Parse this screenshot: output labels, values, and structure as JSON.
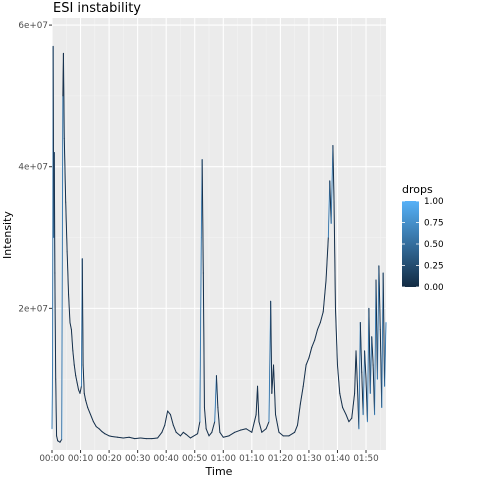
{
  "chart_data": {
    "type": "line",
    "title": "ESI instability",
    "xlabel": "Time",
    "ylabel": "Intensity",
    "x_tick_labels": [
      "00:00",
      "00:10",
      "00:20",
      "00:30",
      "00:40",
      "00:50",
      "01:00",
      "01:10",
      "01:20",
      "01:30",
      "01:40",
      "01:50"
    ],
    "x_tick_minutes": [
      0,
      10,
      20,
      30,
      40,
      50,
      60,
      70,
      80,
      90,
      100,
      110
    ],
    "xlim_minutes": [
      0,
      117
    ],
    "y_tick_labels": [
      "2e+07",
      "4e+07",
      "6e+07"
    ],
    "y_tick_values": [
      20000000,
      40000000,
      60000000
    ],
    "ylim": [
      0,
      61000000
    ],
    "grid": true,
    "legend": {
      "title": "drops",
      "position": "right",
      "scale": "continuous",
      "labels": [
        "1.00",
        "0.75",
        "0.50",
        "0.25",
        "0.00"
      ],
      "values": [
        1.0,
        0.75,
        0.5,
        0.25,
        0.0
      ],
      "low_color": "#132B43",
      "high_color": "#56B1F7"
    },
    "series": [
      {
        "points": [
          [
            0.0,
            3.0
          ],
          [
            0.2,
            12.0
          ],
          [
            0.4,
            57.0
          ],
          [
            0.6,
            30.0
          ],
          [
            0.8,
            42.0
          ],
          [
            1.0,
            25.0
          ],
          [
            1.3,
            10.0
          ],
          [
            1.6,
            2.0
          ],
          [
            2.0,
            1.3
          ],
          [
            2.8,
            1.1
          ],
          [
            3.4,
            1.5
          ],
          [
            3.8,
            50.0
          ],
          [
            4.0,
            56.0
          ],
          [
            4.3,
            44.0
          ],
          [
            4.8,
            35.0
          ],
          [
            5.3,
            28.0
          ],
          [
            5.8,
            22.0
          ],
          [
            6.3,
            18.0
          ],
          [
            6.8,
            17.0
          ],
          [
            7.3,
            14.0
          ],
          [
            7.8,
            12.0
          ],
          [
            8.3,
            10.5
          ],
          [
            8.8,
            9.5
          ],
          [
            9.3,
            8.5
          ],
          [
            9.8,
            8.0
          ],
          [
            10.3,
            9.0
          ],
          [
            10.6,
            27.0
          ],
          [
            10.9,
            12.0
          ],
          [
            11.3,
            8.0
          ],
          [
            11.8,
            7.0
          ],
          [
            12.5,
            6.0
          ],
          [
            13.5,
            5.0
          ],
          [
            14.5,
            4.0
          ],
          [
            15.5,
            3.3
          ],
          [
            16.5,
            3.0
          ],
          [
            17.5,
            2.6
          ],
          [
            18.5,
            2.3
          ],
          [
            20.0,
            2.0
          ],
          [
            21.0,
            1.9
          ],
          [
            23.0,
            1.8
          ],
          [
            25.0,
            1.7
          ],
          [
            27.0,
            1.8
          ],
          [
            29.0,
            1.6
          ],
          [
            31.0,
            1.7
          ],
          [
            33.0,
            1.6
          ],
          [
            35.0,
            1.6
          ],
          [
            37.0,
            1.7
          ],
          [
            38.5,
            2.5
          ],
          [
            39.5,
            3.5
          ],
          [
            40.5,
            5.5
          ],
          [
            41.5,
            5.0
          ],
          [
            42.5,
            3.5
          ],
          [
            43.5,
            2.5
          ],
          [
            45.0,
            2.0
          ],
          [
            46.0,
            2.5
          ],
          [
            47.0,
            2.2
          ],
          [
            48.5,
            1.7
          ],
          [
            51.0,
            2.3
          ],
          [
            51.8,
            4.0
          ],
          [
            52.3,
            30.0
          ],
          [
            52.6,
            41.0
          ],
          [
            53.0,
            25.0
          ],
          [
            53.4,
            6.0
          ],
          [
            54.0,
            3.0
          ],
          [
            55.0,
            2.0
          ],
          [
            56.0,
            2.5
          ],
          [
            57.0,
            4.0
          ],
          [
            57.6,
            10.5
          ],
          [
            58.1,
            6.0
          ],
          [
            58.8,
            2.5
          ],
          [
            60.0,
            1.8
          ],
          [
            62.0,
            2.0
          ],
          [
            64.0,
            2.5
          ],
          [
            66.0,
            2.8
          ],
          [
            68.0,
            3.0
          ],
          [
            70.0,
            2.5
          ],
          [
            71.5,
            5.0
          ],
          [
            72.0,
            9.0
          ],
          [
            72.5,
            4.0
          ],
          [
            73.5,
            2.5
          ],
          [
            75.0,
            3.0
          ],
          [
            76.0,
            4.0
          ],
          [
            76.6,
            21.0
          ],
          [
            77.0,
            8.0
          ],
          [
            77.6,
            12.0
          ],
          [
            78.3,
            5.0
          ],
          [
            79.5,
            2.5
          ],
          [
            81.0,
            2.0
          ],
          [
            83.0,
            2.0
          ],
          [
            85.0,
            2.5
          ],
          [
            86.0,
            3.5
          ],
          [
            87.0,
            6.5
          ],
          [
            88.0,
            9.0
          ],
          [
            89.0,
            12.0
          ],
          [
            90.0,
            13.0
          ],
          [
            91.0,
            14.5
          ],
          [
            92.0,
            15.5
          ],
          [
            93.0,
            17.0
          ],
          [
            94.0,
            18.0
          ],
          [
            95.0,
            19.5
          ],
          [
            96.0,
            24.0
          ],
          [
            96.8,
            30.0
          ],
          [
            97.3,
            38.0
          ],
          [
            97.8,
            32.0
          ],
          [
            98.4,
            43.0
          ],
          [
            98.8,
            35.0
          ],
          [
            99.3,
            20.0
          ],
          [
            100.0,
            12.0
          ],
          [
            100.8,
            8.0
          ],
          [
            101.8,
            6.0
          ],
          [
            103.0,
            5.0
          ],
          [
            104.0,
            4.0
          ],
          [
            105.0,
            4.5
          ],
          [
            106.0,
            8.0
          ],
          [
            106.5,
            14.0
          ],
          [
            107.0,
            9.0
          ],
          [
            107.5,
            3.0
          ],
          [
            108.0,
            18.0
          ],
          [
            108.5,
            11.0
          ],
          [
            109.0,
            5.0
          ],
          [
            109.5,
            14.0
          ],
          [
            110.0,
            10.0
          ],
          [
            110.5,
            4.0
          ],
          [
            111.0,
            20.0
          ],
          [
            111.5,
            8.0
          ],
          [
            112.0,
            16.0
          ],
          [
            112.5,
            12.0
          ],
          [
            113.0,
            5.0
          ],
          [
            113.5,
            24.0
          ],
          [
            114.0,
            10.0
          ],
          [
            114.5,
            26.0
          ],
          [
            115.0,
            17.0
          ],
          [
            115.5,
            6.0
          ],
          [
            116.0,
            25.0
          ],
          [
            116.5,
            9.0
          ],
          [
            117.0,
            18.0
          ]
        ]
      }
    ]
  }
}
